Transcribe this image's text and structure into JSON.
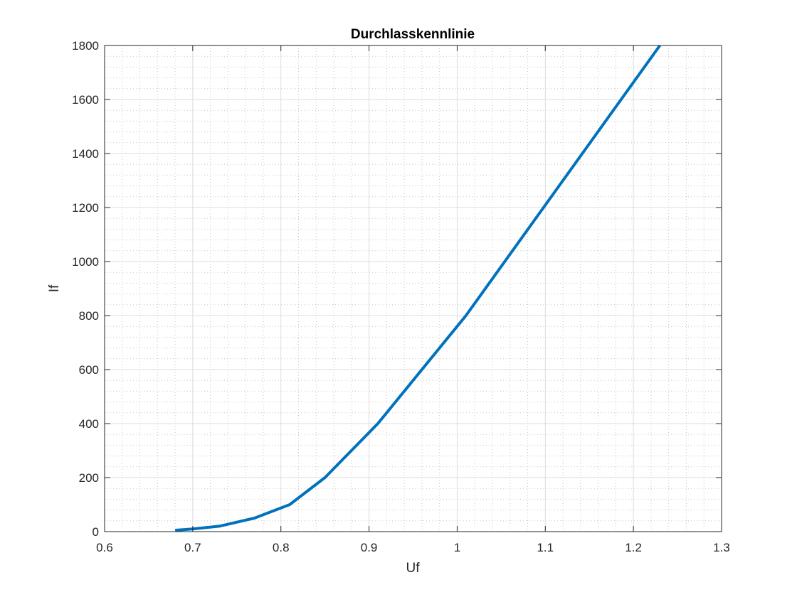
{
  "chart_data": {
    "type": "line",
    "title": "Durchlasskennlinie",
    "xlabel": "Uf",
    "ylabel": "If",
    "xlim": [
      0.6,
      1.3
    ],
    "ylim": [
      0,
      1800
    ],
    "x_ticks": [
      "0.6",
      "0.7",
      "0.8",
      "0.9",
      "1",
      "1.1",
      "1.2",
      "1.3"
    ],
    "y_ticks": [
      "0",
      "200",
      "400",
      "600",
      "800",
      "1000",
      "1200",
      "1400",
      "1600",
      "1800"
    ],
    "grid": true,
    "minor_grid": true,
    "series": [
      {
        "x": [
          0.68,
          0.7,
          0.73,
          0.77,
          0.81,
          0.85,
          0.91,
          1.01,
          1.12,
          1.23
        ],
        "y": [
          5,
          10,
          20,
          50,
          100,
          200,
          400,
          800,
          1300,
          1800
        ],
        "color": "#0072BD"
      }
    ]
  }
}
